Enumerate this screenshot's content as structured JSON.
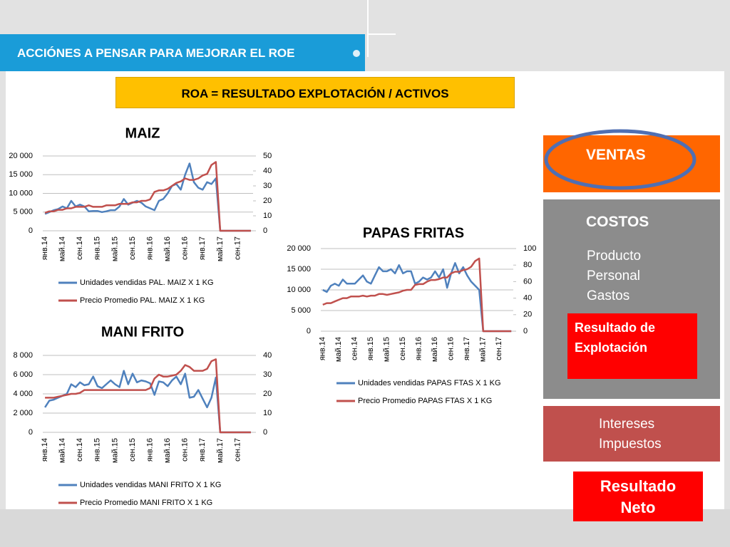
{
  "header": {
    "title": "ACCIÓNES A PENSAR PARA MEJORAR EL ROE"
  },
  "formula": "ROA = RESULTADO EXPLOTACIÓN / ACTIVOS",
  "panel": {
    "ventas": "VENTAS",
    "costos": {
      "title": "COSTOS",
      "items": [
        "Producto",
        "Personal",
        "Gastos"
      ]
    },
    "resultado_explotacion": "Resultado de Explotación",
    "otros": [
      "Intereses",
      "Impuestos"
    ],
    "resultado_neto": "Resultado Neto"
  },
  "chart_data": [
    {
      "type": "line",
      "title": "MAIZ",
      "categories": [
        "янв.14",
        null,
        null,
        null,
        "май.14",
        null,
        null,
        null,
        "сен.14",
        null,
        null,
        null,
        "янв.15",
        null,
        null,
        null,
        "май.15",
        null,
        null,
        null,
        "сен.15",
        null,
        null,
        null,
        "янв.16",
        null,
        null,
        null,
        "май.16",
        null,
        null,
        null,
        "сен.16",
        null,
        null,
        null,
        "янв.17",
        null,
        null,
        null,
        "май.17",
        null,
        null,
        null,
        "сен.17",
        null,
        null,
        null
      ],
      "series": [
        {
          "name": "Unidades vendidas PAL. MAIZ X 1 KG",
          "color": "#4f81bd",
          "values": [
            4500,
            5000,
            5500,
            5800,
            6500,
            6000,
            8000,
            6500,
            7000,
            6500,
            5200,
            5300,
            5300,
            5000,
            5200,
            5500,
            5500,
            6500,
            8500,
            7000,
            7500,
            8000,
            7500,
            6500,
            6000,
            5500,
            8000,
            8500,
            10000,
            12000,
            12500,
            11000,
            15000,
            18000,
            13000,
            11500,
            11000,
            13000,
            12500,
            14000,
            0,
            0,
            0,
            0,
            0,
            0,
            0,
            0
          ]
        },
        {
          "name": "Precio Promedio PAL. MAIZ X 1 KG",
          "color": "#c0504d",
          "axis": "y2",
          "values": [
            12,
            13,
            13,
            14,
            14,
            15,
            15,
            16,
            16,
            16,
            17,
            16,
            16,
            16,
            17,
            17,
            17,
            18,
            18,
            18,
            19,
            19,
            20,
            20,
            21,
            26,
            27,
            27,
            28,
            30,
            32,
            33,
            35,
            34,
            34,
            35,
            37,
            38,
            44,
            46,
            0,
            0,
            0,
            0,
            0,
            0,
            0,
            0
          ]
        }
      ],
      "ylim": [
        0,
        20000
      ],
      "yticks": [
        0,
        {
          "value": 5000,
          "label": "5 000"
        },
        {
          "value": 10000,
          "label": "10 000"
        },
        {
          "value": 15000,
          "label": "15 000"
        },
        {
          "value": 20000,
          "label": "20 000"
        }
      ],
      "y2lim": [
        0,
        50
      ],
      "y2ticks": [
        0,
        10,
        20,
        30,
        40,
        50
      ],
      "grid": true,
      "legend": "bottom"
    },
    {
      "type": "line",
      "title": "PAPAS FRITAS",
      "categories": [
        "янв.14",
        null,
        null,
        null,
        "май.14",
        null,
        null,
        null,
        "сен.14",
        null,
        null,
        null,
        "янв.15",
        null,
        null,
        null,
        "май.15",
        null,
        null,
        null,
        "сен.15",
        null,
        null,
        null,
        "янв.16",
        null,
        null,
        null,
        "май.16",
        null,
        null,
        null,
        "сен.16",
        null,
        null,
        null,
        "янв.17",
        null,
        null,
        null,
        "май.17",
        null,
        null,
        null,
        "сен.17",
        null,
        null,
        null
      ],
      "series": [
        {
          "name": "Unidades vendidas PAPAS FTAS X 1 KG",
          "color": "#4f81bd",
          "values": [
            10000,
            9500,
            11000,
            11500,
            11000,
            12500,
            11500,
            11500,
            11500,
            12500,
            13500,
            12000,
            11500,
            13500,
            15500,
            14500,
            14500,
            15000,
            14000,
            16000,
            14000,
            14500,
            14500,
            11500,
            12000,
            13000,
            12500,
            13000,
            14500,
            13000,
            15000,
            10500,
            14000,
            16500,
            14000,
            15500,
            13500,
            12000,
            11000,
            10000,
            0,
            0,
            0,
            0,
            0,
            0,
            0,
            0
          ]
        },
        {
          "name": "Precio Promedio PAPAS FTAS X 1 KG",
          "color": "#c0504d",
          "axis": "y2",
          "values": [
            32,
            34,
            34,
            36,
            38,
            40,
            40,
            42,
            42,
            42,
            43,
            42,
            43,
            43,
            45,
            45,
            44,
            45,
            46,
            47,
            49,
            50,
            50,
            56,
            57,
            57,
            60,
            62,
            62,
            63,
            65,
            65,
            70,
            72,
            72,
            74,
            75,
            78,
            85,
            88,
            0,
            0,
            0,
            0,
            0,
            0,
            0,
            0
          ]
        }
      ],
      "ylim": [
        0,
        20000
      ],
      "yticks": [
        0,
        {
          "value": 5000,
          "label": "5 000"
        },
        {
          "value": 10000,
          "label": "10 000"
        },
        {
          "value": 15000,
          "label": "15 000"
        },
        {
          "value": 20000,
          "label": "20 000"
        }
      ],
      "y2lim": [
        0,
        100
      ],
      "y2ticks": [
        0,
        20,
        40,
        60,
        80,
        100
      ],
      "grid": true,
      "legend": "bottom"
    },
    {
      "type": "line",
      "title": "MANI FRITO",
      "categories": [
        "янв.14",
        null,
        null,
        null,
        "май.14",
        null,
        null,
        null,
        "сен.14",
        null,
        null,
        null,
        "янв.15",
        null,
        null,
        null,
        "май.15",
        null,
        null,
        null,
        "сен.15",
        null,
        null,
        null,
        "янв.16",
        null,
        null,
        null,
        "май.16",
        null,
        null,
        null,
        "сен.16",
        null,
        null,
        null,
        "янв.17",
        null,
        null,
        null,
        "май.17",
        null,
        null,
        null,
        "сен.17",
        null,
        null,
        null
      ],
      "series": [
        {
          "name": "Unidades vendidas MANI FRITO X 1 KG",
          "color": "#4f81bd",
          "values": [
            2600,
            3300,
            3400,
            3600,
            3800,
            4000,
            5000,
            4700,
            5200,
            4900,
            5000,
            5800,
            4800,
            4600,
            5000,
            5400,
            5000,
            4700,
            6400,
            5000,
            6100,
            5200,
            5400,
            5300,
            5100,
            3900,
            5300,
            5200,
            4800,
            5400,
            5800,
            5000,
            6100,
            3600,
            3700,
            4400,
            3500,
            2600,
            3600,
            5700,
            0,
            0,
            0,
            0,
            0,
            0,
            0,
            0
          ]
        },
        {
          "name": "Precio Promedio MANI FRITO X 1 KG",
          "color": "#c0504d",
          "axis": "y2",
          "values": [
            18,
            18,
            18,
            18.5,
            19,
            19.5,
            20,
            20,
            20.5,
            22,
            22,
            22,
            22,
            22,
            22,
            22,
            22,
            22,
            22,
            22,
            22,
            22,
            22,
            22,
            23,
            28,
            30,
            29,
            29,
            29.5,
            30,
            32,
            35,
            34,
            32,
            32,
            32,
            33,
            37,
            38,
            0,
            0,
            0,
            0,
            0,
            0,
            0,
            0
          ]
        }
      ],
      "ylim": [
        0,
        8000
      ],
      "yticks": [
        0,
        {
          "value": 2000,
          "label": "2 000"
        },
        {
          "value": 4000,
          "label": "4 000"
        },
        {
          "value": 6000,
          "label": "6 000"
        },
        {
          "value": 8000,
          "label": "8 000"
        }
      ],
      "y2lim": [
        0,
        40
      ],
      "y2ticks": [
        0,
        10,
        20,
        30,
        40
      ],
      "grid": true,
      "legend": "bottom"
    }
  ]
}
